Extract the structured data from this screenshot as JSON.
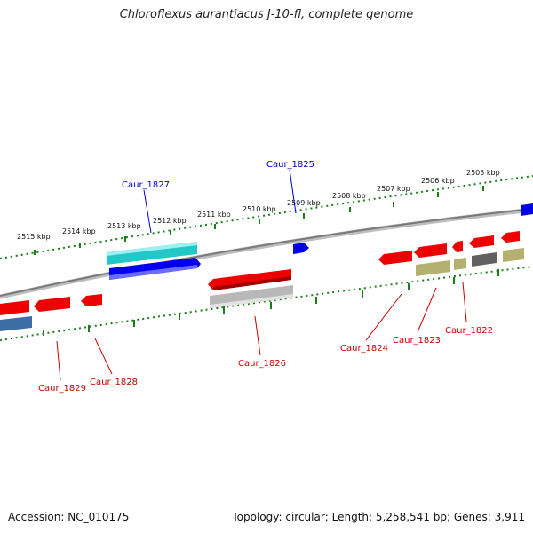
{
  "title": "Chloroflexus aurantiacus J-10-fl, complete genome",
  "footer": {
    "accession": "Accession: NC_010175",
    "summary": "Topology: circular; Length: 5,258,541 bp; Genes: 3,911"
  },
  "colors": {
    "backbone": "#808080",
    "ticks": "#1a7f1a",
    "label_top": "#0000cc",
    "label_bottom": "#cc0000",
    "gene_red": "#ee0000",
    "gene_blue": "#0000ee",
    "gene_cyan": "#22c8c8",
    "gene_silver": "#b8b8b8",
    "gene_olive": "#b4b070",
    "gene_gray": "#606060",
    "gene_steel": "#3a6ea5"
  },
  "kbp_labels": [
    "2515 kbp",
    "2514 kbp",
    "2513 kbp",
    "2512 kbp",
    "2511 kbp",
    "2510 kbp",
    "2509 kbp",
    "2508 kbp",
    "2507 kbp",
    "2506 kbp",
    "2505 kbp"
  ],
  "gene_labels": {
    "caur_1827": "Caur_1827",
    "caur_1825": "Caur_1825",
    "caur_1829": "Caur_1829",
    "caur_1828": "Caur_1828",
    "caur_1826": "Caur_1826",
    "caur_1824": "Caur_1824",
    "caur_1823": "Caur_1823",
    "caur_1822": "Caur_1822"
  }
}
